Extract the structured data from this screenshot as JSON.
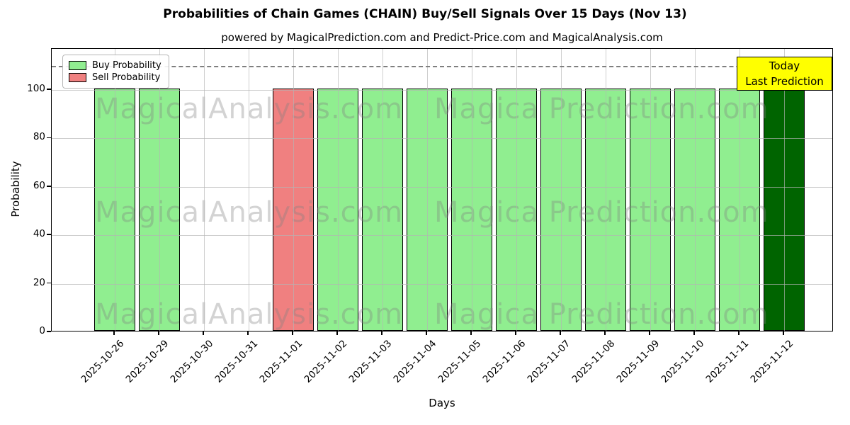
{
  "figure": {
    "title": "Probabilities of Chain Games (CHAIN) Buy/Sell Signals Over 15 Days (Nov 13)",
    "subtitle": "powered by MagicalPrediction.com and Predict-Price.com and MagicalAnalysis.com"
  },
  "chart_data": {
    "type": "bar",
    "title": "Probabilities of Chain Games (CHAIN) Buy/Sell Signals Over 15 Days (Nov 13)",
    "subtitle": "powered by MagicalPrediction.com and Predict-Price.com and MagicalAnalysis.com",
    "xlabel": "Days",
    "ylabel": "Probability",
    "ylim": [
      0,
      117
    ],
    "yticks": [
      0,
      20,
      40,
      60,
      80,
      100
    ],
    "grid": true,
    "legend_position": "upper left",
    "dashed_threshold_y": 110,
    "categories": [
      "2025-10-26",
      "2025-10-29",
      "2025-10-30",
      "2025-10-31",
      "2025-11-01",
      "2025-11-02",
      "2025-11-03",
      "2025-11-04",
      "2025-11-05",
      "2025-11-06",
      "2025-11-07",
      "2025-11-08",
      "2025-11-09",
      "2025-11-10",
      "2025-11-11",
      "2025-11-12"
    ],
    "series": [
      {
        "name": "Buy Probability",
        "color": "#90ee90",
        "values": [
          100,
          100,
          0,
          0,
          0,
          100,
          100,
          100,
          100,
          100,
          100,
          100,
          100,
          100,
          100,
          100
        ]
      },
      {
        "name": "Sell Probability",
        "color": "#f08080",
        "values": [
          0,
          0,
          0,
          0,
          100,
          0,
          0,
          0,
          0,
          0,
          0,
          0,
          0,
          0,
          0,
          0
        ]
      }
    ],
    "today_bar": {
      "category": "2025-11-12",
      "value": 100,
      "color": "#006400"
    },
    "annotation": {
      "line1": "Today",
      "line2": "Last Prediction",
      "bg_color": "#ffff00"
    },
    "watermark_left": "MagicalAnalysis.com",
    "watermark_right": "Magica Prediction.com",
    "colors": {
      "buy": "#90ee90",
      "sell": "#f08080",
      "today": "#006400",
      "annotation_bg": "#ffff00",
      "grid": "#c8c8c8",
      "dashed_line": "#7f7f7f",
      "bar_edge": "#000000"
    }
  }
}
